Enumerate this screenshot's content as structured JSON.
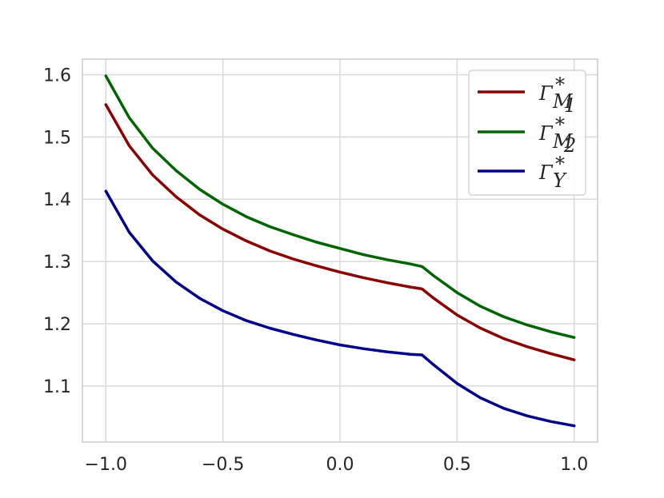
{
  "chart_data": {
    "type": "line",
    "title": "",
    "xlabel": "",
    "ylabel": "",
    "xlim": [
      -1.1,
      1.1
    ],
    "ylim": [
      1.01,
      1.625
    ],
    "grid": true,
    "legend_position": "top-right",
    "x_ticks": [
      -1.0,
      -0.5,
      0.0,
      0.5,
      1.0
    ],
    "x_tick_labels": [
      "−1.0",
      "−0.5",
      "0.0",
      "0.5",
      "1.0"
    ],
    "y_ticks": [
      1.1,
      1.2,
      1.3,
      1.4,
      1.5,
      1.6
    ],
    "y_tick_labels": [
      "1.1",
      "1.2",
      "1.3",
      "1.4",
      "1.5",
      "1.6"
    ],
    "x": [
      -1.0,
      -0.9,
      -0.8,
      -0.7,
      -0.6,
      -0.5,
      -0.4,
      -0.3,
      -0.2,
      -0.1,
      0.0,
      0.1,
      0.2,
      0.3,
      0.35,
      0.4,
      0.5,
      0.6,
      0.7,
      0.8,
      0.9,
      1.0
    ],
    "series": [
      {
        "name": "Γ*M1",
        "color": "#8b0000",
        "values": [
          1.552,
          1.486,
          1.439,
          1.404,
          1.375,
          1.352,
          1.333,
          1.317,
          1.304,
          1.293,
          1.283,
          1.274,
          1.266,
          1.259,
          1.256,
          1.241,
          1.214,
          1.193,
          1.176,
          1.163,
          1.152,
          1.142
        ]
      },
      {
        "name": "Γ*M2",
        "color": "#006400",
        "values": [
          1.598,
          1.531,
          1.482,
          1.446,
          1.416,
          1.392,
          1.372,
          1.356,
          1.343,
          1.331,
          1.321,
          1.311,
          1.303,
          1.296,
          1.292,
          1.277,
          1.25,
          1.228,
          1.211,
          1.198,
          1.187,
          1.178
        ]
      },
      {
        "name": "Γ*Y",
        "color": "#00008b",
        "values": [
          1.413,
          1.347,
          1.301,
          1.267,
          1.241,
          1.221,
          1.205,
          1.193,
          1.183,
          1.174,
          1.166,
          1.16,
          1.155,
          1.151,
          1.15,
          1.134,
          1.104,
          1.081,
          1.064,
          1.052,
          1.043,
          1.036
        ]
      }
    ],
    "legend_entries": [
      {
        "base": "Γ",
        "sup": "*",
        "sub": "M",
        "subsub": "1"
      },
      {
        "base": "Γ",
        "sup": "*",
        "sub": "M",
        "subsub": "2"
      },
      {
        "base": "Γ",
        "sup": "*",
        "sub": "Y",
        "subsub": ""
      }
    ]
  }
}
